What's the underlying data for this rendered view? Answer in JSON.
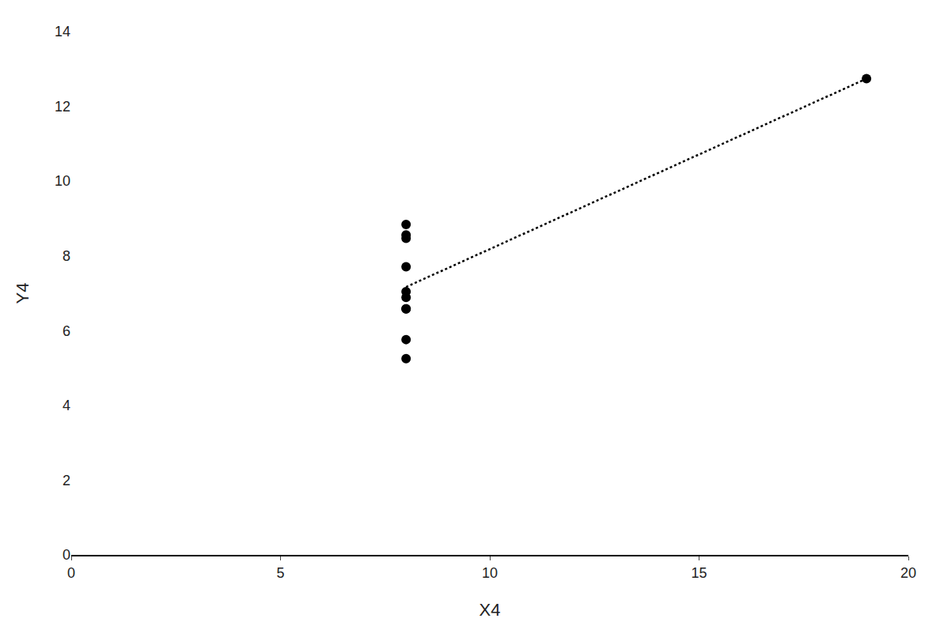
{
  "chart_data": {
    "type": "scatter",
    "xlabel": "X4",
    "ylabel": "Y4",
    "series": [
      {
        "type": "scatter",
        "color": "#000000",
        "marker": "circle",
        "x": [
          8,
          8,
          8,
          8,
          8,
          8,
          8,
          8,
          8,
          8,
          19
        ],
        "values": [
          6.58,
          5.76,
          7.71,
          8.84,
          8.47,
          7.04,
          6.89,
          6.58,
          5.25,
          8.56,
          12.74
        ]
      },
      {
        "type": "line",
        "color": "#000000",
        "line_style": "dotted",
        "x": [
          8,
          19
        ],
        "values": [
          7.168,
          12.74
        ]
      }
    ],
    "xlim": [
      0,
      20
    ],
    "ylim": [
      0,
      14
    ],
    "xticks": [
      0,
      5,
      10,
      15,
      20
    ],
    "yticks": [
      0,
      2,
      4,
      6,
      8,
      10,
      12,
      14
    ],
    "grid": false
  }
}
